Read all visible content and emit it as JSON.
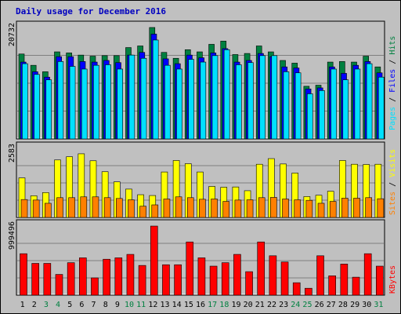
{
  "title": "Daily usage for December 2016",
  "colors": {
    "hits": "#008040",
    "files": "#0000ff",
    "pages": "#00e0ff",
    "visits": "#ffff00",
    "sites": "#ff8000",
    "kbytes": "#ff0000",
    "weekend": "#008040",
    "weekday": "#000000",
    "border": "#000000",
    "plot_bg": "#c0c0c0",
    "grid": "#808080"
  },
  "legends": {
    "top": {
      "pages": "Pages",
      "files": "Files",
      "hits": "Hits",
      "sep": " / "
    },
    "middle": {
      "sites": "Sites",
      "visits": "Visits",
      "sep": " / "
    },
    "bottom": {
      "kbytes": "KBytes"
    }
  },
  "chart_data": [
    {
      "type": "bar",
      "panel": "top",
      "max_label": "20732",
      "ylim": [
        0,
        20732
      ],
      "categories": [
        "1",
        "2",
        "3",
        "4",
        "5",
        "6",
        "7",
        "8",
        "9",
        "10",
        "11",
        "12",
        "13",
        "14",
        "15",
        "16",
        "17",
        "18",
        "19",
        "20",
        "21",
        "22",
        "23",
        "24",
        "25",
        "26",
        "27",
        "28",
        "29",
        "30",
        "31"
      ],
      "weekend_days": [
        3,
        4,
        10,
        11,
        17,
        18,
        24,
        25,
        31
      ],
      "series": [
        {
          "name": "Hits",
          "values": [
            15800,
            13700,
            12500,
            16200,
            16000,
            15600,
            15400,
            15500,
            15500,
            17000,
            17300,
            20732,
            16100,
            15000,
            16600,
            16200,
            17600,
            18200,
            15700,
            15900,
            17300,
            16200,
            14600,
            14100,
            9800,
            10000,
            14300,
            14400,
            14300,
            15400,
            13400
          ]
        },
        {
          "name": "Files",
          "values": [
            14300,
            12500,
            11500,
            15300,
            15300,
            14400,
            14300,
            14600,
            14200,
            15600,
            16100,
            19500,
            14900,
            14000,
            15600,
            15100,
            16000,
            16800,
            14300,
            14600,
            15900,
            15300,
            13400,
            13200,
            9300,
            9500,
            13400,
            12200,
            13700,
            14400,
            12300
          ]
        },
        {
          "name": "Pages",
          "values": [
            14000,
            12000,
            11000,
            14400,
            13500,
            13000,
            13700,
            13800,
            13000,
            15600,
            15000,
            18400,
            13700,
            13000,
            14800,
            14300,
            15500,
            16600,
            13800,
            14200,
            15500,
            15500,
            12500,
            12300,
            8400,
            9000,
            13000,
            11000,
            13000,
            14000,
            11500
          ]
        }
      ]
    },
    {
      "type": "bar",
      "panel": "middle",
      "max_label": "2583",
      "ylim": [
        0,
        2583
      ],
      "categories": [
        "1",
        "2",
        "3",
        "4",
        "5",
        "6",
        "7",
        "8",
        "9",
        "10",
        "11",
        "12",
        "13",
        "14",
        "15",
        "16",
        "17",
        "18",
        "19",
        "20",
        "21",
        "22",
        "23",
        "24",
        "25",
        "26",
        "27",
        "28",
        "29",
        "30",
        "31"
      ],
      "series": [
        {
          "name": "Visits",
          "values": [
            1480,
            810,
            930,
            2150,
            2270,
            2380,
            2120,
            1710,
            1330,
            1060,
            850,
            820,
            1700,
            2130,
            2010,
            1700,
            1160,
            1130,
            1140,
            1000,
            1990,
            2200,
            2000,
            1660,
            780,
            830,
            980,
            2130,
            1990,
            1980,
            1990
          ]
        },
        {
          "name": "Sites",
          "values": [
            670,
            650,
            530,
            740,
            740,
            770,
            770,
            740,
            710,
            660,
            420,
            470,
            690,
            770,
            740,
            680,
            690,
            600,
            650,
            660,
            740,
            750,
            690,
            660,
            640,
            530,
            600,
            720,
            720,
            740,
            700
          ]
        }
      ]
    },
    {
      "type": "bar",
      "panel": "bottom",
      "max_label": "999496",
      "ylim": [
        0,
        999496
      ],
      "categories": [
        "1",
        "2",
        "3",
        "4",
        "5",
        "6",
        "7",
        "8",
        "9",
        "10",
        "11",
        "12",
        "13",
        "14",
        "15",
        "16",
        "17",
        "18",
        "19",
        "20",
        "21",
        "22",
        "23",
        "24",
        "25",
        "26",
        "27",
        "28",
        "29",
        "30",
        "31"
      ],
      "series": [
        {
          "name": "KBytes",
          "values": [
            600000,
            460000,
            460000,
            300000,
            470000,
            540000,
            250000,
            520000,
            540000,
            590000,
            430000,
            999496,
            440000,
            440000,
            770000,
            540000,
            420000,
            470000,
            590000,
            340000,
            770000,
            570000,
            480000,
            180000,
            100000,
            570000,
            280000,
            450000,
            260000,
            600000,
            420000
          ]
        }
      ]
    }
  ]
}
